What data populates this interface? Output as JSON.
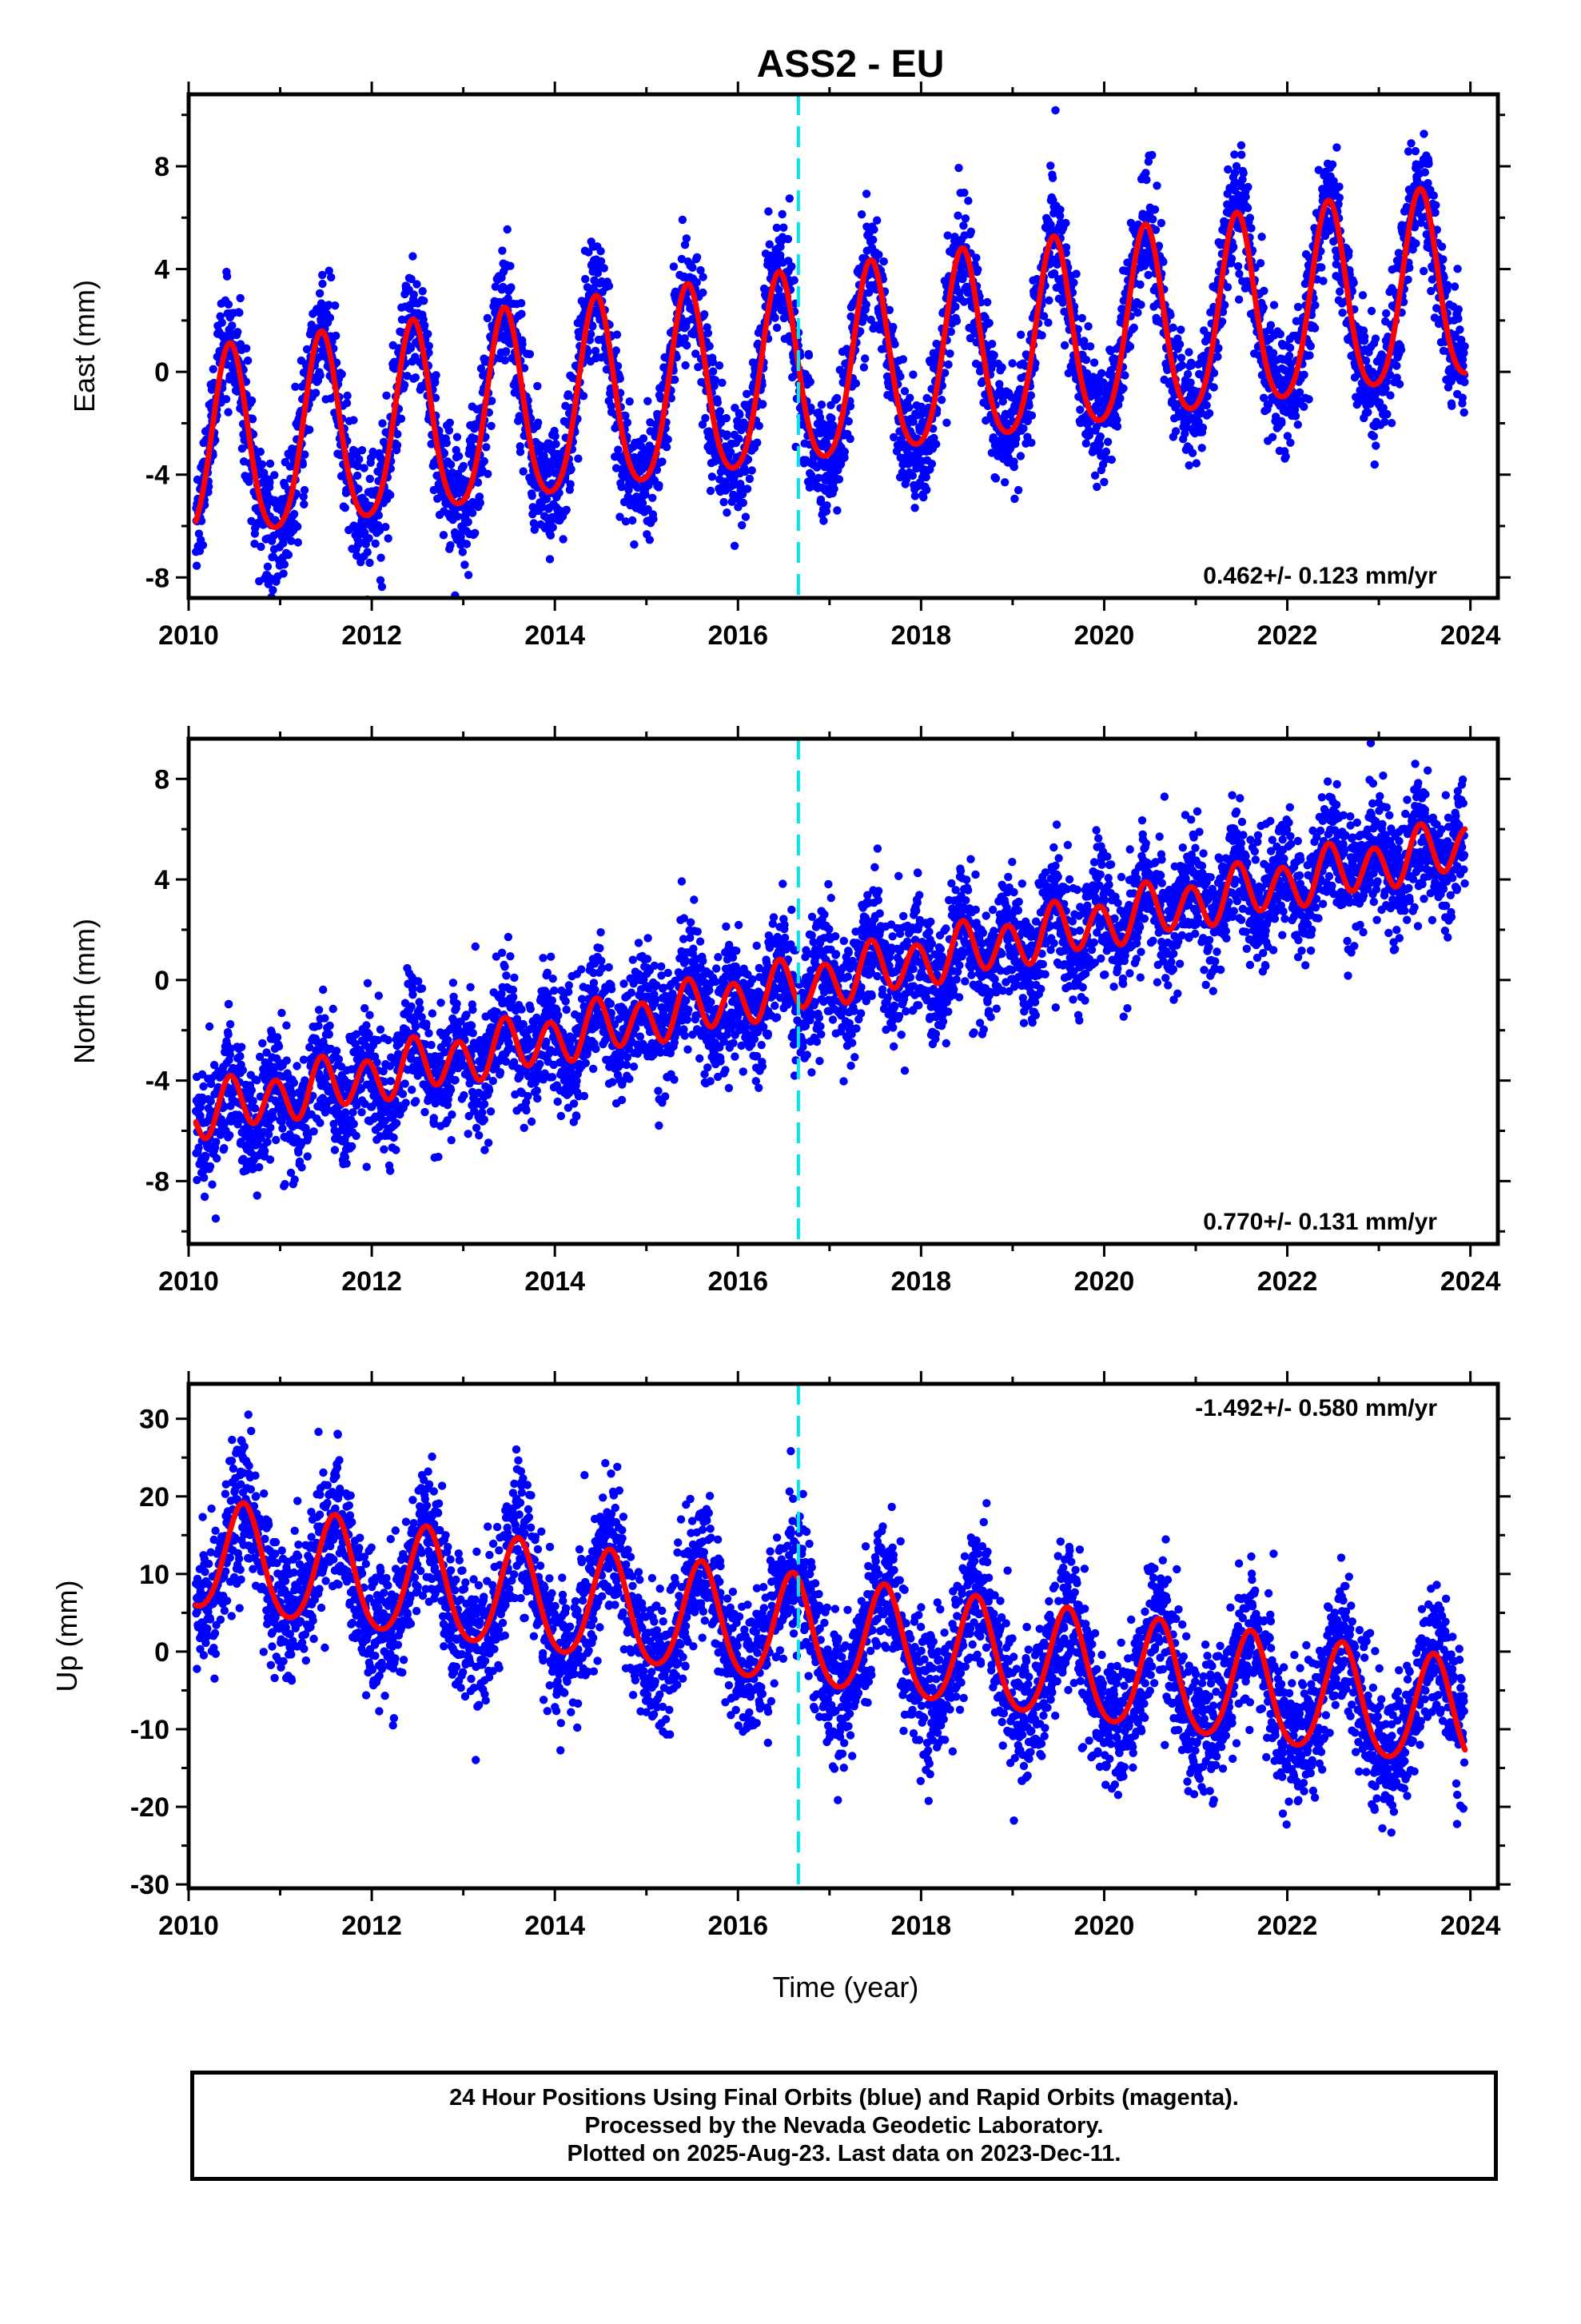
{
  "title": "ASS2 - EU",
  "colors": {
    "points": "#0000ff",
    "fit": "#ff0000",
    "event_line": "#00e5ee",
    "frame": "#000000"
  },
  "footer": {
    "line1": "24 Hour Positions Using Final Orbits (blue) and Rapid Orbits (magenta).",
    "line2": "Processed by the Nevada Geodetic Laboratory.",
    "line3": "Plotted on 2025-Aug-23. Last data on 2023-Dec-11."
  },
  "chart_data": [
    {
      "type": "scatter",
      "component": "east",
      "ylabel": "East (mm)",
      "xlabel": "",
      "xlim": [
        2010.0,
        2024.3
      ],
      "ylim": [
        -8.8,
        10.8
      ],
      "xticks": [
        2010,
        2012,
        2014,
        2016,
        2018,
        2020,
        2022,
        2024
      ],
      "yticks": [
        -8,
        -4,
        0,
        4,
        8
      ],
      "rate_text": "0.462+/- 0.123 mm/yr",
      "rate_position": "bottom-right",
      "data_start": 2010.08,
      "data_end": 2023.94,
      "event_line_x": 2016.66,
      "fit": {
        "rate_mm_per_yr": 0.462,
        "offset_mm_at_2017": -0.05,
        "annual_amplitude_mm": 3.7,
        "annual_peak_phase_yr": 0.45,
        "semiannual_amplitude_mm": 0.5,
        "semiannual_peak_phase_yr": 0.45
      },
      "scatter_sigma_mm": 1.15,
      "series": [
        {
          "name": "Final Orbits (blue)",
          "color": "#0000ff",
          "kind": "points"
        },
        {
          "name": "Model fit",
          "color": "#ff0000",
          "kind": "line"
        }
      ]
    },
    {
      "type": "scatter",
      "component": "north",
      "ylabel": "North (mm)",
      "xlabel": "",
      "xlim": [
        2010.0,
        2024.3
      ],
      "ylim": [
        -10.5,
        9.6
      ],
      "xticks": [
        2010,
        2012,
        2014,
        2016,
        2018,
        2020,
        2022,
        2024
      ],
      "yticks": [
        -8,
        -4,
        0,
        4,
        8
      ],
      "rate_text": "0.770+/- 0.131 mm/yr",
      "rate_position": "bottom-right",
      "data_start": 2010.08,
      "data_end": 2023.94,
      "event_line_x": 2016.66,
      "fit": {
        "rate_mm_per_yr": 0.77,
        "offset_mm_at_2017": 0.0,
        "annual_amplitude_mm": 0.3,
        "annual_peak_phase_yr": 0.5,
        "semiannual_amplitude_mm": 0.95,
        "semiannual_peak_phase_yr": 0.45
      },
      "scatter_sigma_mm": 1.2,
      "series": [
        {
          "name": "Final Orbits (blue)",
          "color": "#0000ff",
          "kind": "points"
        },
        {
          "name": "Model fit",
          "color": "#ff0000",
          "kind": "line"
        }
      ]
    },
    {
      "type": "scatter",
      "component": "up",
      "ylabel": "Up (mm)",
      "xlabel": "Time (year)",
      "xlim": [
        2010.0,
        2024.3
      ],
      "ylim": [
        -30.5,
        34.5
      ],
      "xticks": [
        2010,
        2012,
        2014,
        2016,
        2018,
        2020,
        2022,
        2024
      ],
      "yticks": [
        -30,
        -20,
        -10,
        0,
        10,
        20,
        30
      ],
      "rate_text": "-1.492+/- 0.580 mm/yr",
      "rate_position": "top-right",
      "data_start": 2010.08,
      "data_end": 2023.94,
      "event_line_x": 2016.66,
      "fit": {
        "rate_mm_per_yr": -1.492,
        "offset_mm_at_2017": 1.8,
        "annual_amplitude_mm": 7.0,
        "annual_peak_phase_yr": 0.6,
        "semiannual_amplitude_mm": 0.8,
        "semiannual_peak_phase_yr": 0.1
      },
      "scatter_sigma_mm": 4.4,
      "series": [
        {
          "name": "Final Orbits (blue)",
          "color": "#0000ff",
          "kind": "points"
        },
        {
          "name": "Model fit",
          "color": "#ff0000",
          "kind": "line"
        }
      ]
    }
  ]
}
